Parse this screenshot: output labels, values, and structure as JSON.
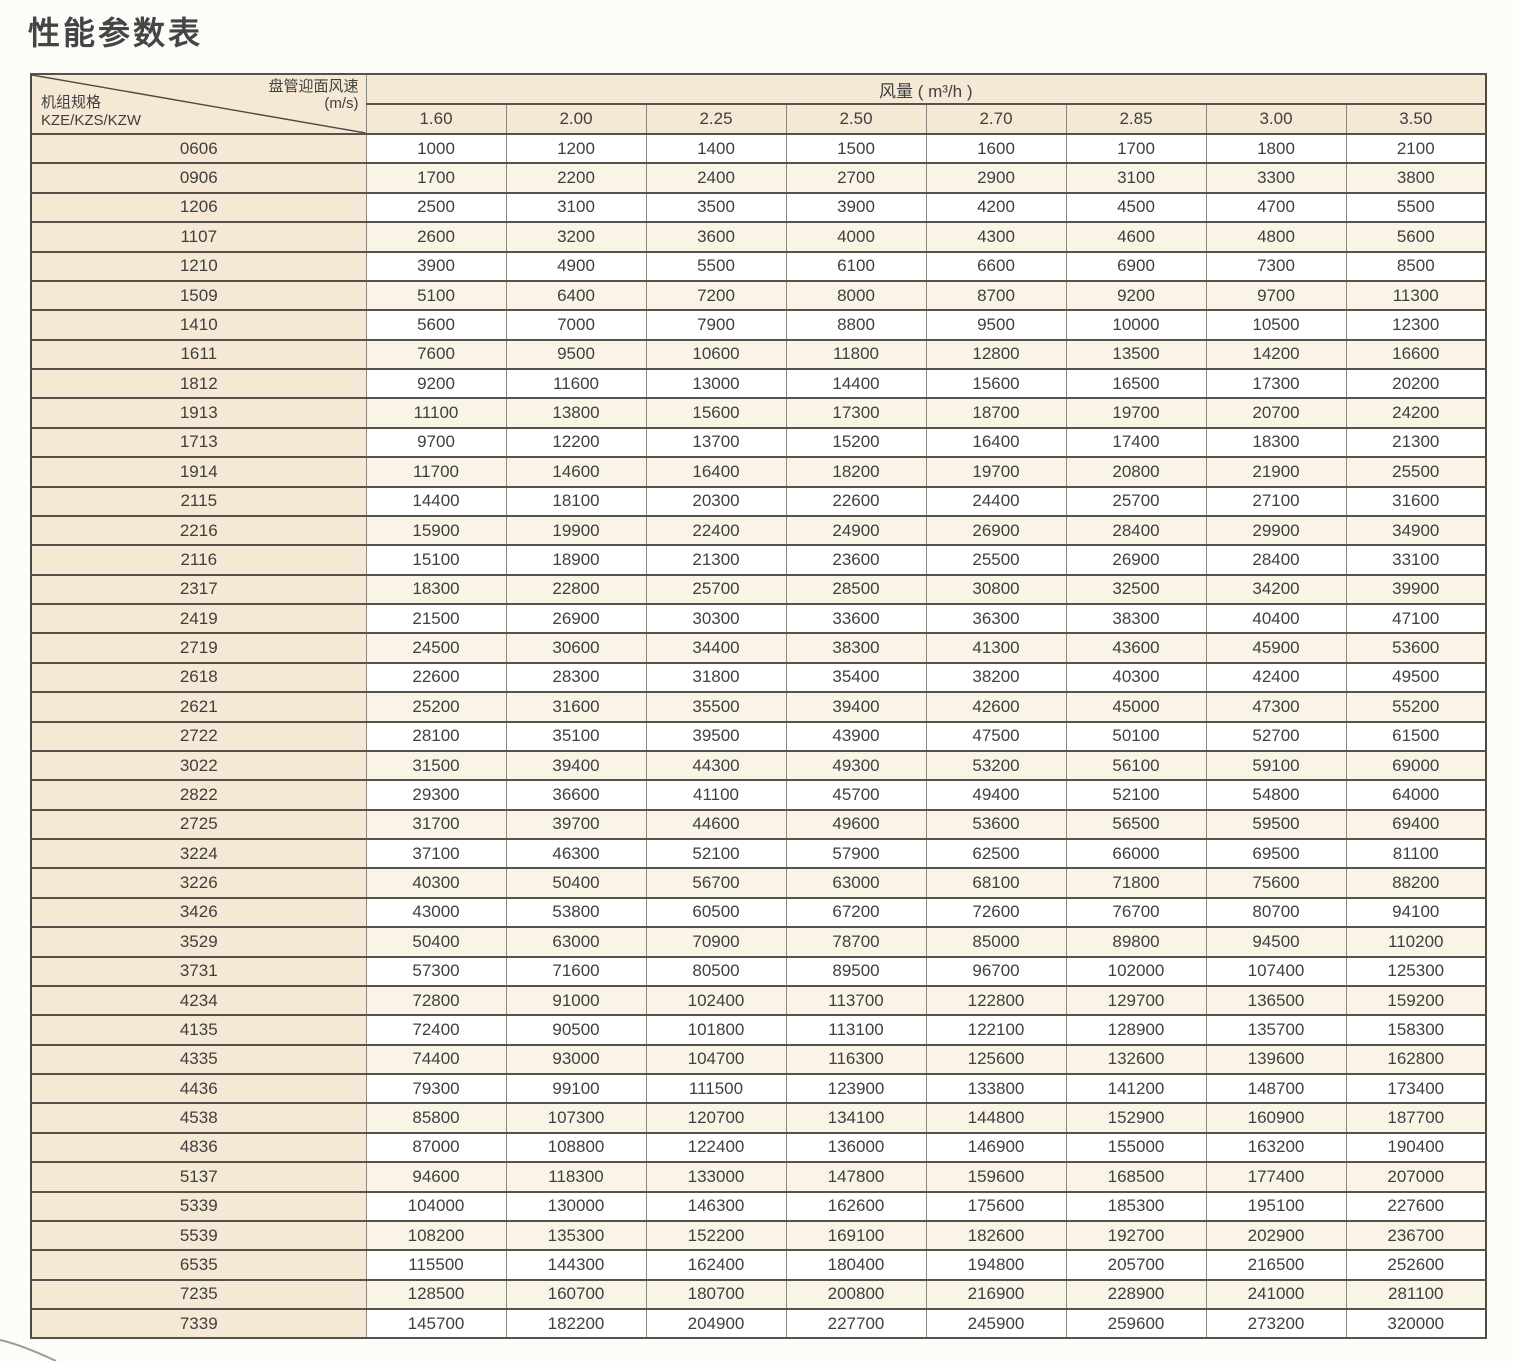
{
  "page_title": "性能参数表",
  "table": {
    "corner": {
      "top_label": "盘管迎面风速",
      "top_unit": "(m/s)",
      "bottom_label": "机组规格",
      "bottom_sublabel": "KZE/KZS/KZW"
    },
    "airflow_header": "风量 ( m³/h )",
    "velocity_columns": [
      "1.60",
      "2.00",
      "2.25",
      "2.50",
      "2.70",
      "2.85",
      "3.00",
      "3.50"
    ],
    "rows": [
      {
        "model": "0606",
        "values": [
          1000,
          1200,
          1400,
          1500,
          1600,
          1700,
          1800,
          2100
        ]
      },
      {
        "model": "0906",
        "values": [
          1700,
          2200,
          2400,
          2700,
          2900,
          3100,
          3300,
          3800
        ]
      },
      {
        "model": "1206",
        "values": [
          2500,
          3100,
          3500,
          3900,
          4200,
          4500,
          4700,
          5500
        ]
      },
      {
        "model": "1107",
        "values": [
          2600,
          3200,
          3600,
          4000,
          4300,
          4600,
          4800,
          5600
        ]
      },
      {
        "model": "1210",
        "values": [
          3900,
          4900,
          5500,
          6100,
          6600,
          6900,
          7300,
          8500
        ]
      },
      {
        "model": "1509",
        "values": [
          5100,
          6400,
          7200,
          8000,
          8700,
          9200,
          9700,
          11300
        ]
      },
      {
        "model": "1410",
        "values": [
          5600,
          7000,
          7900,
          8800,
          9500,
          10000,
          10500,
          12300
        ]
      },
      {
        "model": "1611",
        "values": [
          7600,
          9500,
          10600,
          11800,
          12800,
          13500,
          14200,
          16600
        ]
      },
      {
        "model": "1812",
        "values": [
          9200,
          11600,
          13000,
          14400,
          15600,
          16500,
          17300,
          20200
        ]
      },
      {
        "model": "1913",
        "values": [
          11100,
          13800,
          15600,
          17300,
          18700,
          19700,
          20700,
          24200
        ]
      },
      {
        "model": "1713",
        "values": [
          9700,
          12200,
          13700,
          15200,
          16400,
          17400,
          18300,
          21300
        ]
      },
      {
        "model": "1914",
        "values": [
          11700,
          14600,
          16400,
          18200,
          19700,
          20800,
          21900,
          25500
        ]
      },
      {
        "model": "2115",
        "values": [
          14400,
          18100,
          20300,
          22600,
          24400,
          25700,
          27100,
          31600
        ]
      },
      {
        "model": "2216",
        "values": [
          15900,
          19900,
          22400,
          24900,
          26900,
          28400,
          29900,
          34900
        ]
      },
      {
        "model": "2116",
        "values": [
          15100,
          18900,
          21300,
          23600,
          25500,
          26900,
          28400,
          33100
        ]
      },
      {
        "model": "2317",
        "values": [
          18300,
          22800,
          25700,
          28500,
          30800,
          32500,
          34200,
          39900
        ]
      },
      {
        "model": "2419",
        "values": [
          21500,
          26900,
          30300,
          33600,
          36300,
          38300,
          40400,
          47100
        ]
      },
      {
        "model": "2719",
        "values": [
          24500,
          30600,
          34400,
          38300,
          41300,
          43600,
          45900,
          53600
        ]
      },
      {
        "model": "2618",
        "values": [
          22600,
          28300,
          31800,
          35400,
          38200,
          40300,
          42400,
          49500
        ]
      },
      {
        "model": "2621",
        "values": [
          25200,
          31600,
          35500,
          39400,
          42600,
          45000,
          47300,
          55200
        ]
      },
      {
        "model": "2722",
        "values": [
          28100,
          35100,
          39500,
          43900,
          47500,
          50100,
          52700,
          61500
        ]
      },
      {
        "model": "3022",
        "values": [
          31500,
          39400,
          44300,
          49300,
          53200,
          56100,
          59100,
          69000
        ]
      },
      {
        "model": "2822",
        "values": [
          29300,
          36600,
          41100,
          45700,
          49400,
          52100,
          54800,
          64000
        ]
      },
      {
        "model": "2725",
        "values": [
          31700,
          39700,
          44600,
          49600,
          53600,
          56500,
          59500,
          69400
        ]
      },
      {
        "model": "3224",
        "values": [
          37100,
          46300,
          52100,
          57900,
          62500,
          66000,
          69500,
          81100
        ]
      },
      {
        "model": "3226",
        "values": [
          40300,
          50400,
          56700,
          63000,
          68100,
          71800,
          75600,
          88200
        ]
      },
      {
        "model": "3426",
        "values": [
          43000,
          53800,
          60500,
          67200,
          72600,
          76700,
          80700,
          94100
        ]
      },
      {
        "model": "3529",
        "values": [
          50400,
          63000,
          70900,
          78700,
          85000,
          89800,
          94500,
          110200
        ]
      },
      {
        "model": "3731",
        "values": [
          57300,
          71600,
          80500,
          89500,
          96700,
          102000,
          107400,
          125300
        ]
      },
      {
        "model": "4234",
        "values": [
          72800,
          91000,
          102400,
          113700,
          122800,
          129700,
          136500,
          159200
        ]
      },
      {
        "model": "4135",
        "values": [
          72400,
          90500,
          101800,
          113100,
          122100,
          128900,
          135700,
          158300
        ]
      },
      {
        "model": "4335",
        "values": [
          74400,
          93000,
          104700,
          116300,
          125600,
          132600,
          139600,
          162800
        ]
      },
      {
        "model": "4436",
        "values": [
          79300,
          99100,
          111500,
          123900,
          133800,
          141200,
          148700,
          173400
        ]
      },
      {
        "model": "4538",
        "values": [
          85800,
          107300,
          120700,
          134100,
          144800,
          152900,
          160900,
          187700
        ]
      },
      {
        "model": "4836",
        "values": [
          87000,
          108800,
          122400,
          136000,
          146900,
          155000,
          163200,
          190400
        ]
      },
      {
        "model": "5137",
        "values": [
          94600,
          118300,
          133000,
          147800,
          159600,
          168500,
          177400,
          207000
        ]
      },
      {
        "model": "5339",
        "values": [
          104000,
          130000,
          146300,
          162600,
          175600,
          185300,
          195100,
          227600
        ]
      },
      {
        "model": "5539",
        "values": [
          108200,
          135300,
          152200,
          169100,
          182600,
          192700,
          202900,
          236700
        ]
      },
      {
        "model": "6535",
        "values": [
          115500,
          144300,
          162400,
          180400,
          194800,
          205700,
          216500,
          252600
        ]
      },
      {
        "model": "7235",
        "values": [
          128500,
          160700,
          180700,
          200800,
          216900,
          228900,
          241000,
          281100
        ]
      },
      {
        "model": "7339",
        "values": [
          145700,
          182200,
          204900,
          227700,
          245900,
          259600,
          273200,
          320000
        ]
      }
    ]
  },
  "colors": {
    "page_background": "#fdfcf9",
    "header_beige": "#f5e9d5",
    "stripe_cream": "#faf4e7",
    "stripe_white": "#ffffff",
    "border_dark": "#55524b",
    "border_light": "#8a8680",
    "text": "#3f3f3f"
  }
}
